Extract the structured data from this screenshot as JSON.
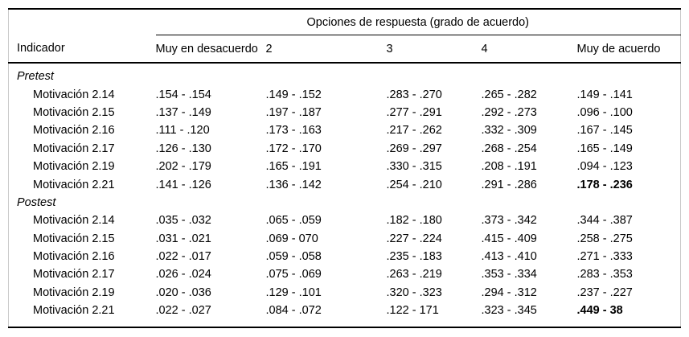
{
  "table": {
    "spanner_title": "Opciones de respuesta (grado de acuerdo)",
    "columns": [
      "Indicador",
      "Muy en desacuerdo",
      "2",
      "3",
      "4",
      "Muy de acuerdo"
    ],
    "sections": [
      {
        "label": "Pretest",
        "rows": [
          {
            "indicator": "Motivación 2.14",
            "values": [
              ".154 - .154",
              ".149 - .152",
              ".283 - .270",
              ".265 - .282",
              ".149 - .141"
            ],
            "bold_last": false
          },
          {
            "indicator": "Motivación 2.15",
            "values": [
              ".137 - .149",
              ".197 - .187",
              ".277 - .291",
              ".292 - .273",
              ".096 - .100"
            ],
            "bold_last": false
          },
          {
            "indicator": "Motivación 2.16",
            "values": [
              ".111 - .120",
              ".173 - .163",
              ".217 - .262",
              ".332 - .309",
              ".167 - .145"
            ],
            "bold_last": false
          },
          {
            "indicator": "Motivación 2.17",
            "values": [
              ".126 - .130",
              ".172 - .170",
              ".269 - .297",
              ".268 - .254",
              ".165 - .149"
            ],
            "bold_last": false
          },
          {
            "indicator": "Motivación 2.19",
            "values": [
              ".202 - .179",
              ".165 - .191",
              ".330 - .315",
              ".208 - .191",
              ".094 - .123"
            ],
            "bold_last": false
          },
          {
            "indicator": "Motivación 2.21",
            "values": [
              ".141 - .126",
              ".136 - .142",
              ".254 - .210",
              ".291 - .286",
              ".178 - .236"
            ],
            "bold_last": true
          }
        ]
      },
      {
        "label": "Postest",
        "rows": [
          {
            "indicator": "Motivación 2.14",
            "values": [
              ".035 - .032",
              ".065 - .059",
              ".182 - .180",
              ".373 - .342",
              ".344 - .387"
            ],
            "bold_last": false
          },
          {
            "indicator": "Motivación 2.15",
            "values": [
              ".031 - .021",
              ".069 - 070",
              ".227 - .224",
              ".415 - .409",
              ".258 - .275"
            ],
            "bold_last": false
          },
          {
            "indicator": "Motivación 2.16",
            "values": [
              ".022 - .017",
              ".059 - .058",
              ".235 - .183",
              ".413 - .410",
              ".271 - .333"
            ],
            "bold_last": false
          },
          {
            "indicator": "Motivación 2.17",
            "values": [
              ".026 - .024",
              ".075 - .069",
              ".263 - .219",
              ".353 - .334",
              ".283 - .353"
            ],
            "bold_last": false
          },
          {
            "indicator": "Motivación 2.19",
            "values": [
              ".020 - .036",
              ".129 - .101",
              ".320 - .323",
              ".294 - .312",
              ".237 - .227"
            ],
            "bold_last": false
          },
          {
            "indicator": "Motivación 2.21",
            "values": [
              ".022 - .027",
              ".084 - .072",
              ".122 - 171",
              ".323 - .345",
              ".449 - 38"
            ],
            "bold_last": true
          }
        ]
      }
    ]
  }
}
